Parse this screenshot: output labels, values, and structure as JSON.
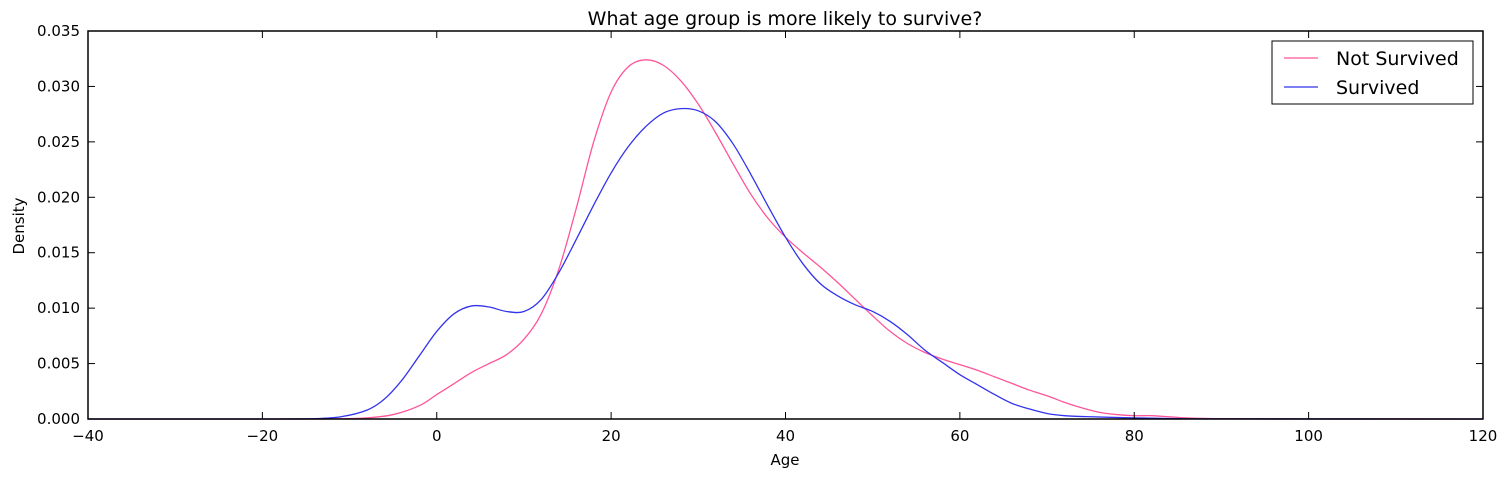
{
  "chart_data": {
    "type": "line",
    "title": "What age group is more likely to survive?",
    "xlabel": "Age",
    "ylabel": "Density",
    "xlim": [
      -40,
      120
    ],
    "ylim": [
      0,
      0.035
    ],
    "x_ticks": [
      -40,
      -20,
      0,
      20,
      40,
      60,
      80,
      100,
      120
    ],
    "x_tick_labels": [
      "−40",
      "−20",
      "0",
      "20",
      "40",
      "60",
      "80",
      "100",
      "120"
    ],
    "y_ticks": [
      0,
      0.005,
      0.01,
      0.015,
      0.02,
      0.025,
      0.03,
      0.035
    ],
    "y_tick_labels": [
      "0.000",
      "0.005",
      "0.010",
      "0.015",
      "0.020",
      "0.025",
      "0.030",
      "0.035"
    ],
    "grid": false,
    "legend_position": "top-right",
    "series": [
      {
        "name": "Not Survived",
        "color": "#ff5599",
        "points": [
          [
            -40,
            0
          ],
          [
            -20,
            0
          ],
          [
            -12,
            1e-05
          ],
          [
            -8,
            0.0001
          ],
          [
            -5,
            0.0004
          ],
          [
            -2,
            0.0012
          ],
          [
            0,
            0.0022
          ],
          [
            2,
            0.0032
          ],
          [
            4,
            0.0042
          ],
          [
            6,
            0.005
          ],
          [
            8,
            0.0058
          ],
          [
            10,
            0.0072
          ],
          [
            12,
            0.0095
          ],
          [
            14,
            0.0135
          ],
          [
            16,
            0.019
          ],
          [
            18,
            0.025
          ],
          [
            20,
            0.0295
          ],
          [
            22,
            0.0318
          ],
          [
            24,
            0.0324
          ],
          [
            26,
            0.0319
          ],
          [
            28,
            0.0305
          ],
          [
            30,
            0.0284
          ],
          [
            32,
            0.0258
          ],
          [
            34,
            0.023
          ],
          [
            36,
            0.0203
          ],
          [
            38,
            0.0181
          ],
          [
            40,
            0.0164
          ],
          [
            42,
            0.015
          ],
          [
            44,
            0.0137
          ],
          [
            46,
            0.0123
          ],
          [
            48,
            0.0108
          ],
          [
            50,
            0.0093
          ],
          [
            52,
            0.0079
          ],
          [
            54,
            0.0068
          ],
          [
            56,
            0.006
          ],
          [
            58,
            0.0054
          ],
          [
            60,
            0.0049
          ],
          [
            62,
            0.0044
          ],
          [
            64,
            0.0038
          ],
          [
            66,
            0.0032
          ],
          [
            68,
            0.0026
          ],
          [
            70,
            0.0021
          ],
          [
            72,
            0.0015
          ],
          [
            74,
            0.001
          ],
          [
            76,
            0.0006
          ],
          [
            78,
            0.0004
          ],
          [
            80,
            0.0003
          ],
          [
            82,
            0.0003
          ],
          [
            84,
            0.0002
          ],
          [
            86,
            0.0001
          ],
          [
            90,
            3e-05
          ],
          [
            100,
            1e-05
          ],
          [
            120,
            0
          ]
        ]
      },
      {
        "name": "Survived",
        "color": "#3333ee",
        "points": [
          [
            -40,
            0
          ],
          [
            -20,
            0
          ],
          [
            -14,
            3e-05
          ],
          [
            -11,
            0.0002
          ],
          [
            -8,
            0.0008
          ],
          [
            -6,
            0.0018
          ],
          [
            -4,
            0.0035
          ],
          [
            -2,
            0.0057
          ],
          [
            0,
            0.0079
          ],
          [
            2,
            0.0095
          ],
          [
            4,
            0.0102
          ],
          [
            6,
            0.0101
          ],
          [
            8,
            0.0097
          ],
          [
            10,
            0.0097
          ],
          [
            12,
            0.0108
          ],
          [
            14,
            0.0132
          ],
          [
            16,
            0.0162
          ],
          [
            18,
            0.0193
          ],
          [
            20,
            0.0222
          ],
          [
            22,
            0.0246
          ],
          [
            24,
            0.0264
          ],
          [
            26,
            0.0276
          ],
          [
            28,
            0.028
          ],
          [
            30,
            0.0278
          ],
          [
            32,
            0.0268
          ],
          [
            34,
            0.0248
          ],
          [
            36,
            0.0221
          ],
          [
            38,
            0.0192
          ],
          [
            40,
            0.0164
          ],
          [
            42,
            0.014
          ],
          [
            44,
            0.0122
          ],
          [
            46,
            0.0111
          ],
          [
            48,
            0.0103
          ],
          [
            50,
            0.0097
          ],
          [
            52,
            0.0088
          ],
          [
            54,
            0.0076
          ],
          [
            56,
            0.0062
          ],
          [
            58,
            0.0051
          ],
          [
            60,
            0.004
          ],
          [
            62,
            0.0031
          ],
          [
            64,
            0.0022
          ],
          [
            66,
            0.0014
          ],
          [
            68,
            0.0009
          ],
          [
            70,
            0.0005
          ],
          [
            72,
            0.0003
          ],
          [
            75,
            0.0002
          ],
          [
            80,
            0.0001
          ],
          [
            85,
            3e-05
          ],
          [
            90,
            1e-05
          ],
          [
            120,
            0
          ]
        ]
      }
    ]
  }
}
